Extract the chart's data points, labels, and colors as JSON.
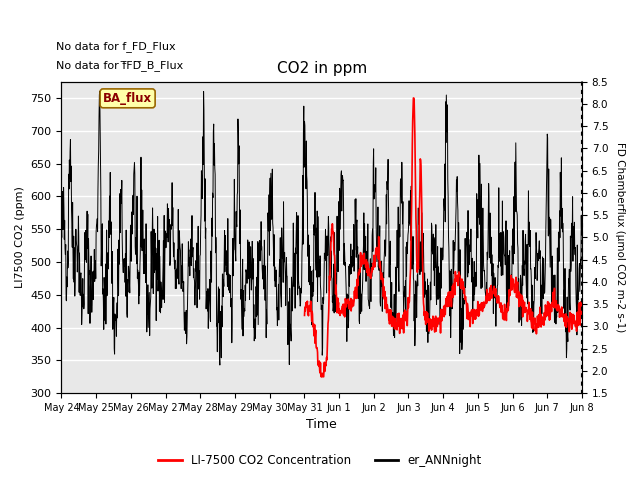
{
  "title": "CO2 in ppm",
  "xlabel": "Time",
  "ylabel_left": "LI7500 CO2 (ppm)",
  "ylabel_right": "FD Chamberflux (μmol CO2 m-2 s-1)",
  "text_no_data_1": "No data for f_FD_Flux",
  "text_no_data_2": "No data for f̅FD̅_B_Flux",
  "ba_flux_label": "BA_flux",
  "ylim_left": [
    300,
    775
  ],
  "ylim_right": [
    1.5,
    8.5
  ],
  "yticks_left": [
    300,
    350,
    400,
    450,
    500,
    550,
    600,
    650,
    700,
    750
  ],
  "yticks_right": [
    1.5,
    2.0,
    2.5,
    3.0,
    3.5,
    4.0,
    4.5,
    5.0,
    5.5,
    6.0,
    6.5,
    7.0,
    7.5,
    8.0,
    8.5
  ],
  "legend_red_label": "LI-7500 CO2 Concentration",
  "legend_black_label": "er_ANNnight",
  "background_color": "#ffffff",
  "plot_bg_color": "#e8e8e8",
  "grid_color": "#ffffff",
  "xtick_labels": [
    "May 24",
    "May 25",
    "May 26",
    "May 27",
    "May 28",
    "May 29",
    "May 30",
    "May 31",
    "Jun 1",
    "Jun 2",
    "Jun 3",
    "Jun 4",
    "Jun 5",
    "Jun 6",
    "Jun 7",
    "Jun 8"
  ],
  "figsize": [
    6.4,
    4.8
  ],
  "dpi": 100
}
